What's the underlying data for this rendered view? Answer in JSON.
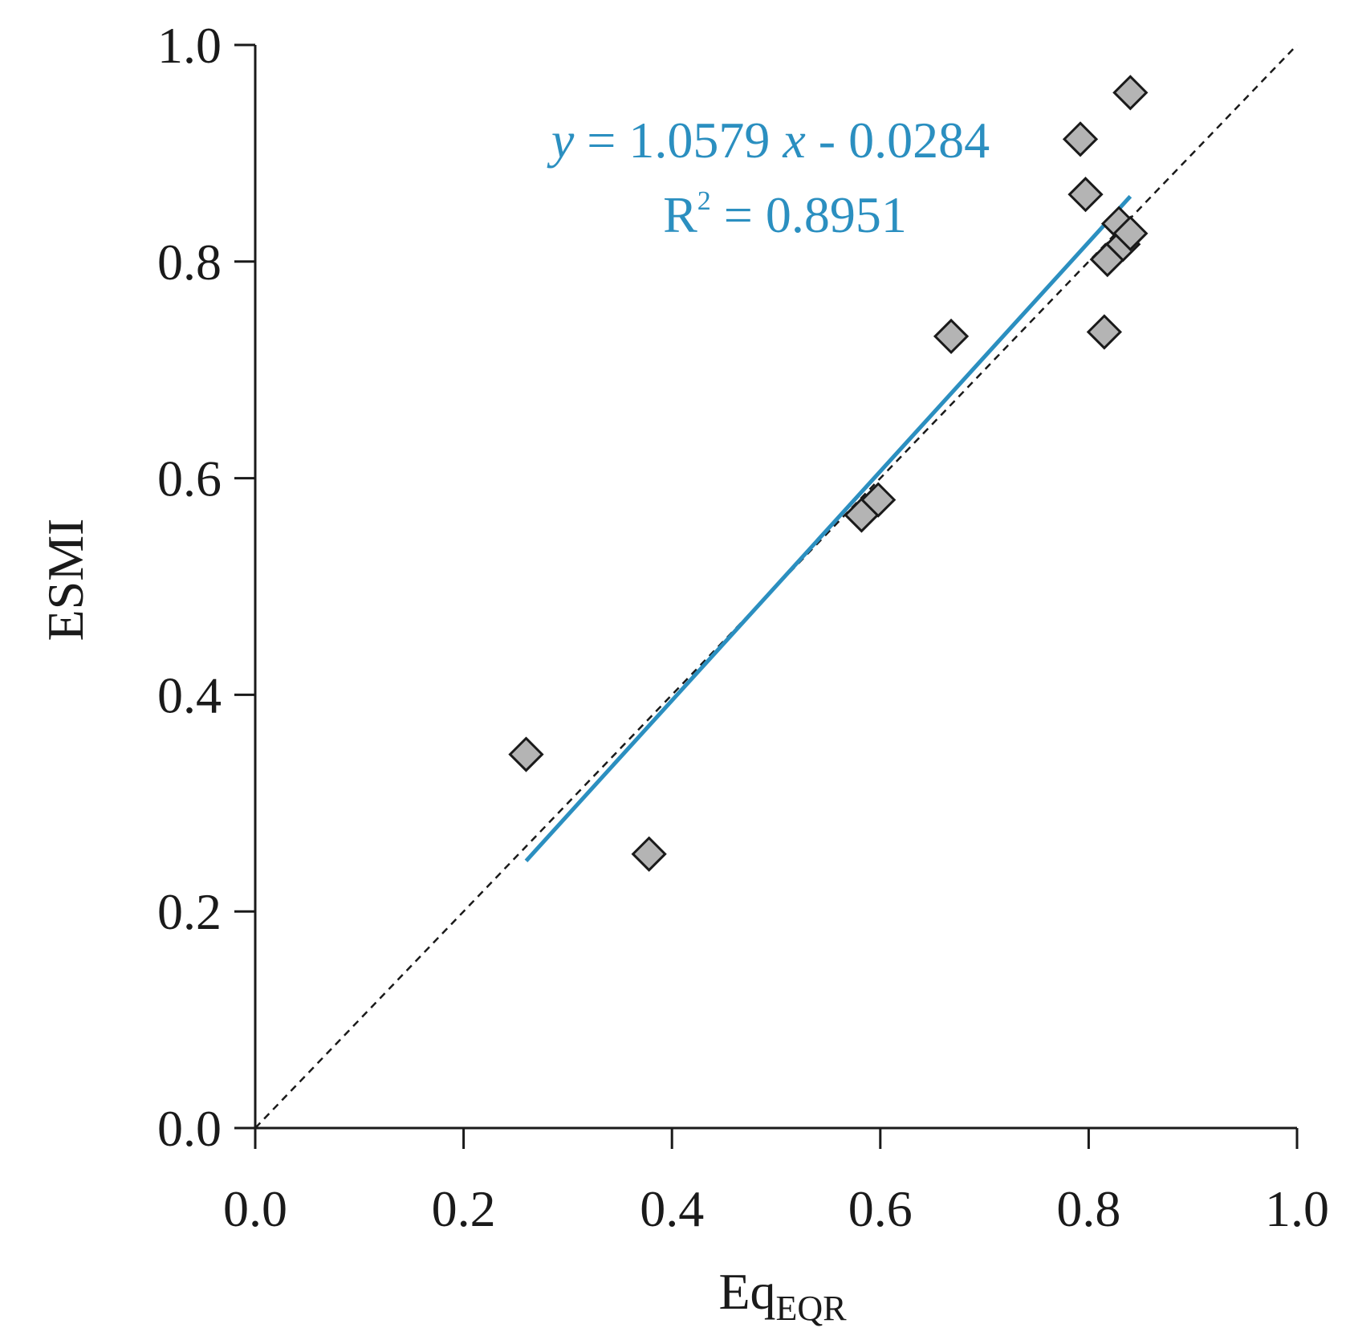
{
  "chart_data": {
    "type": "scatter",
    "xlabel": "Eq",
    "xlabel_subscript": "EQR",
    "ylabel": "ESMI",
    "xlim": [
      0.0,
      1.0
    ],
    "ylim": [
      0.0,
      1.0
    ],
    "x_ticks": [
      "0.0",
      "0.2",
      "0.4",
      "0.6",
      "0.8",
      "1.0"
    ],
    "y_ticks": [
      "0.0",
      "0.2",
      "0.4",
      "0.6",
      "0.8",
      "1.0"
    ],
    "grid": false,
    "marker": "diamond",
    "colors": {
      "marker_fill": "#b4b4b4",
      "marker_edge": "#1a1a1a",
      "fit_line": "#2b8fc0",
      "reference_line": "#1a1a1a"
    },
    "points": [
      {
        "x": 0.26,
        "y": 0.345
      },
      {
        "x": 0.378,
        "y": 0.253
      },
      {
        "x": 0.582,
        "y": 0.566
      },
      {
        "x": 0.598,
        "y": 0.58
      },
      {
        "x": 0.668,
        "y": 0.731
      },
      {
        "x": 0.792,
        "y": 0.913
      },
      {
        "x": 0.797,
        "y": 0.862
      },
      {
        "x": 0.815,
        "y": 0.735
      },
      {
        "x": 0.818,
        "y": 0.802
      },
      {
        "x": 0.829,
        "y": 0.835
      },
      {
        "x": 0.833,
        "y": 0.816
      },
      {
        "x": 0.84,
        "y": 0.826
      },
      {
        "x": 0.84,
        "y": 0.956
      }
    ],
    "fit_line": {
      "slope": 1.0579,
      "intercept": -0.0284,
      "x_range": [
        0.26,
        0.84
      ],
      "equation_parts": [
        "y",
        " = 1.0579 ",
        "x",
        " - 0.0284"
      ],
      "r2_parts": [
        "R",
        "2",
        " = 0.8951"
      ]
    },
    "reference_line": {
      "type": "dashed",
      "from": [
        0.0,
        0.0
      ],
      "to": [
        1.0,
        1.0
      ]
    }
  }
}
